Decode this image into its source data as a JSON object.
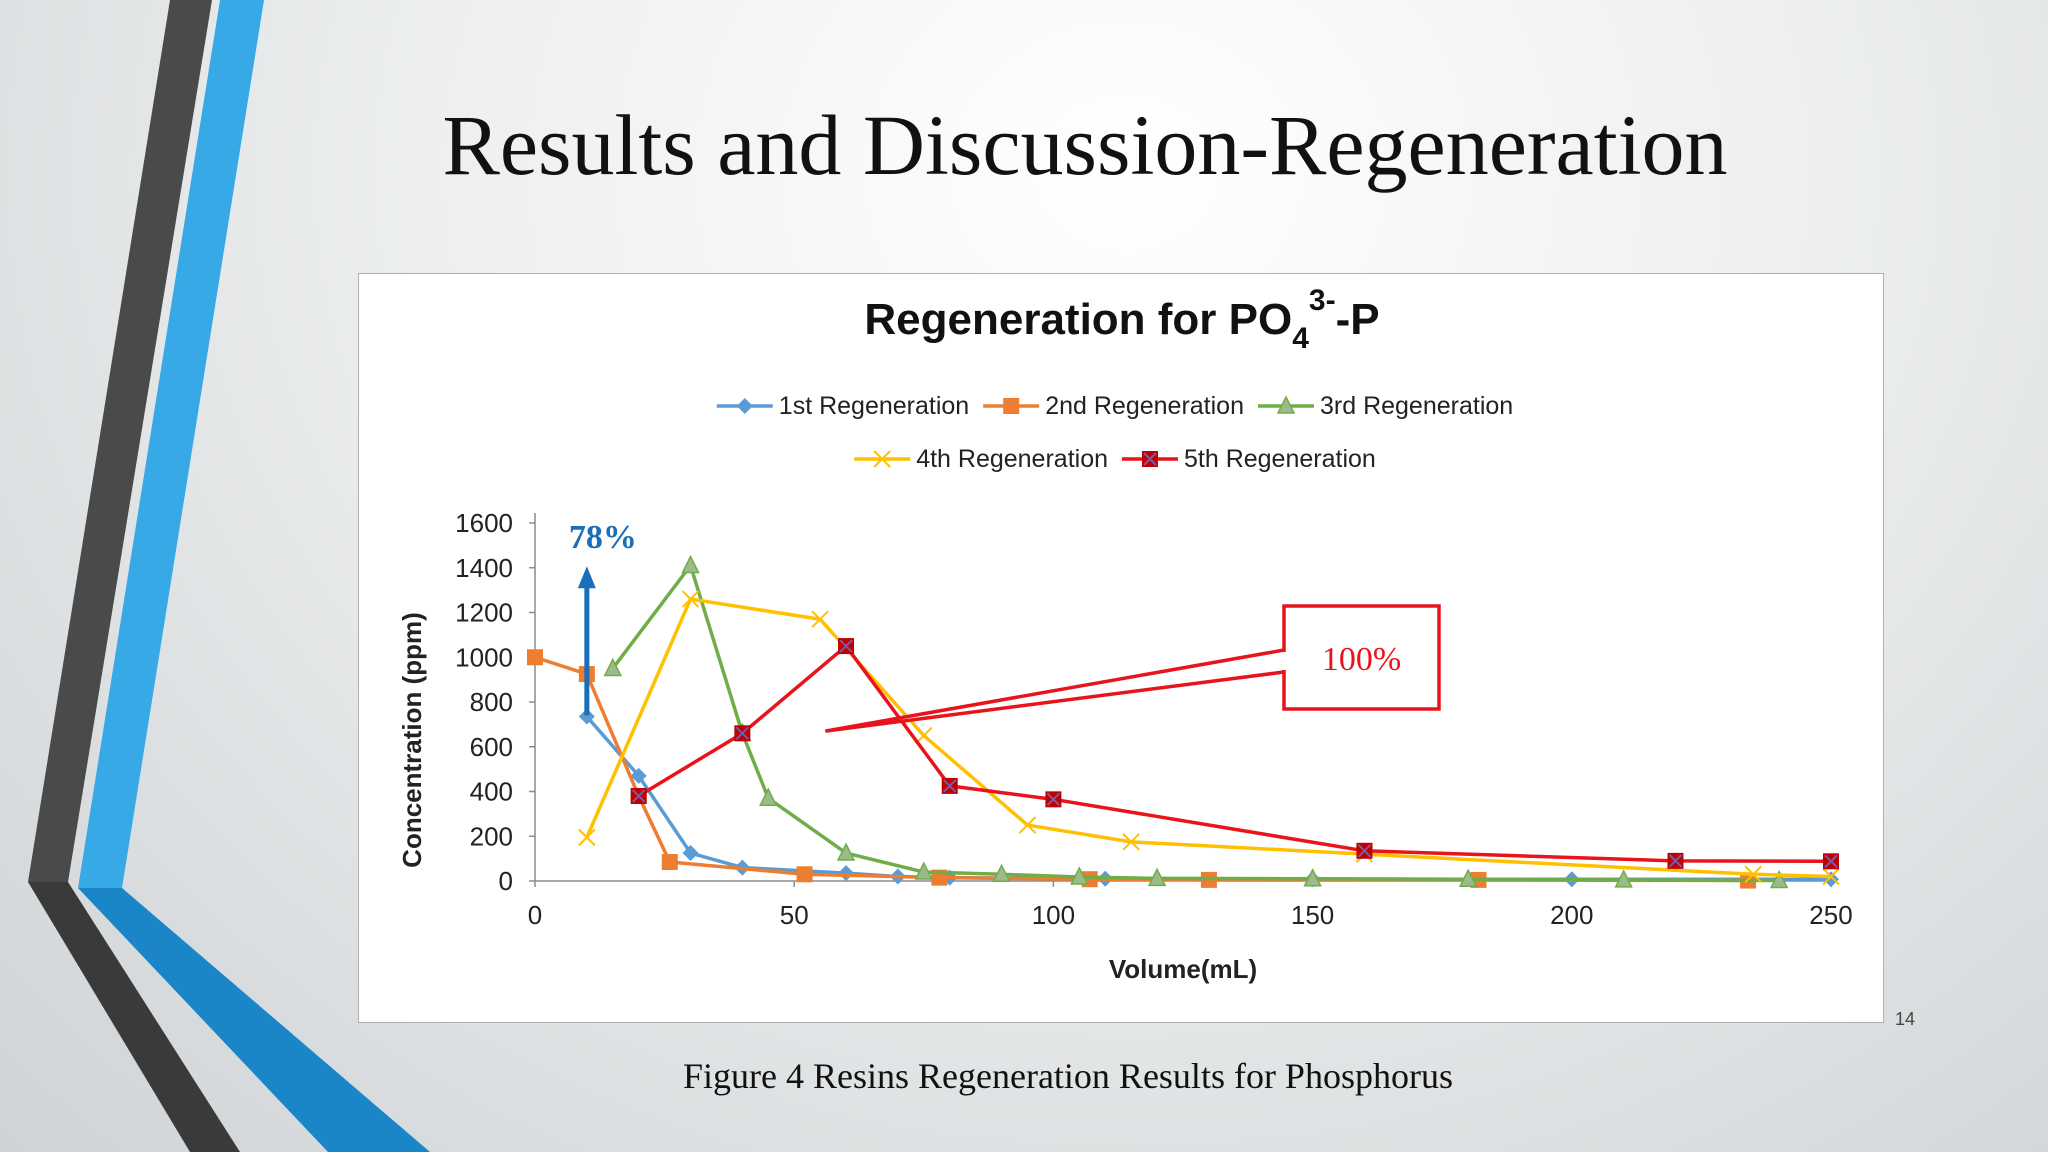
{
  "slide": {
    "title": "Results and Discussion-Regeneration",
    "caption": "Figure 4 Resins Regeneration Results for Phosphorus",
    "page_number": "14"
  },
  "colors": {
    "s1": "#5b9bd5",
    "s2": "#ed7d31",
    "s3": "#70ad47",
    "s4": "#ffc000",
    "s5": "#e8141c",
    "arrow": "#1a6fb8",
    "callout": "#e8141c"
  },
  "annotations": {
    "arrow_label": "78%",
    "arrow_from": [
      10,
      740
    ],
    "arrow_to": [
      10,
      1380
    ],
    "callout_label": "100%",
    "callout_point": [
      56,
      670
    ]
  },
  "chart_data": {
    "type": "line",
    "title_main": "Regeneration for PO",
    "title_sub": "4",
    "title_sup": "3-",
    "title_tail": "-P",
    "xlabel": "Volume(mL)",
    "ylabel": "Concentration (ppm)",
    "xlim": [
      0,
      250
    ],
    "ylim": [
      0,
      1600
    ],
    "xticks": [
      0,
      50,
      100,
      150,
      200,
      250
    ],
    "yticks": [
      0,
      200,
      400,
      600,
      800,
      1000,
      1200,
      1400,
      1600
    ],
    "grid": false,
    "legend_position": "top-center",
    "series": [
      {
        "name": "1st Regeneration",
        "marker": "diamond",
        "points": [
          [
            10,
            735
          ],
          [
            20,
            470
          ],
          [
            30,
            125
          ],
          [
            40,
            60
          ],
          [
            60,
            35
          ],
          [
            70,
            20
          ],
          [
            80,
            15
          ],
          [
            110,
            10
          ],
          [
            150,
            8
          ],
          [
            200,
            8
          ],
          [
            250,
            8
          ]
        ]
      },
      {
        "name": "2nd Regeneration",
        "marker": "square",
        "points": [
          [
            0,
            1000
          ],
          [
            10,
            925
          ],
          [
            20,
            380
          ],
          [
            26,
            85
          ],
          [
            52,
            30
          ],
          [
            78,
            15
          ],
          [
            107,
            8
          ],
          [
            130,
            5
          ],
          [
            182,
            5
          ],
          [
            234,
            2
          ]
        ]
      },
      {
        "name": "3rd Regeneration",
        "marker": "triangle",
        "points": [
          [
            15,
            950
          ],
          [
            30,
            1410
          ],
          [
            40,
            660
          ],
          [
            45,
            370
          ],
          [
            60,
            125
          ],
          [
            75,
            40
          ],
          [
            90,
            30
          ],
          [
            105,
            18
          ],
          [
            120,
            12
          ],
          [
            150,
            10
          ],
          [
            180,
            8
          ],
          [
            210,
            5
          ],
          [
            240,
            2
          ]
        ]
      },
      {
        "name": "4th Regeneration",
        "marker": "x",
        "points": [
          [
            10,
            195
          ],
          [
            30,
            1260
          ],
          [
            55,
            1170
          ],
          [
            75,
            650
          ],
          [
            95,
            250
          ],
          [
            115,
            175
          ],
          [
            160,
            120
          ],
          [
            235,
            30
          ],
          [
            250,
            20
          ]
        ]
      },
      {
        "name": "5th Regeneration",
        "marker": "square-x",
        "points": [
          [
            20,
            380
          ],
          [
            40,
            660
          ],
          [
            60,
            1050
          ],
          [
            80,
            425
          ],
          [
            100,
            365
          ],
          [
            160,
            135
          ],
          [
            220,
            90
          ],
          [
            250,
            88
          ]
        ]
      }
    ]
  }
}
